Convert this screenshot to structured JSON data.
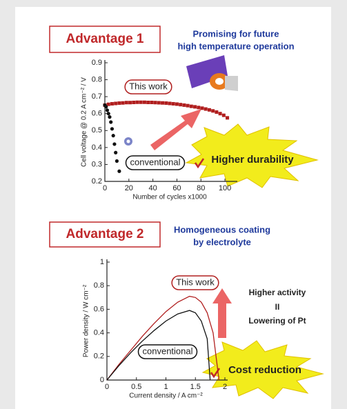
{
  "chart_data": [
    {
      "type": "scatter",
      "badge": "Advantage 1",
      "subtitle": [
        "Promising for future",
        "high temperature operation"
      ],
      "xlabel": "Number of cycles x1000",
      "ylabel": "Cell voltage @ 0.2 A cm⁻² / V",
      "xlim": [
        0,
        108
      ],
      "xticks": [
        0,
        20,
        40,
        60,
        80,
        100
      ],
      "ylim": [
        0.2,
        0.9
      ],
      "yticks": [
        0.2,
        0.3,
        0.4,
        0.5,
        0.6,
        0.7,
        0.8,
        0.9
      ],
      "series": [
        {
          "name": "This work",
          "color": "#b01e1e",
          "x": [
            0,
            3,
            6,
            9,
            12,
            15,
            18,
            21,
            24,
            27,
            30,
            33,
            36,
            39,
            42,
            45,
            48,
            51,
            54,
            57,
            60,
            63,
            66,
            69,
            72,
            75,
            78,
            81,
            84,
            87,
            90,
            93,
            96,
            99,
            102
          ],
          "values": [
            0.65,
            0.655,
            0.658,
            0.66,
            0.662,
            0.663,
            0.665,
            0.665,
            0.666,
            0.667,
            0.667,
            0.667,
            0.666,
            0.666,
            0.665,
            0.664,
            0.663,
            0.662,
            0.66,
            0.658,
            0.656,
            0.653,
            0.65,
            0.647,
            0.643,
            0.64,
            0.636,
            0.632,
            0.627,
            0.622,
            0.616,
            0.609,
            0.6,
            0.59,
            0.575
          ]
        },
        {
          "name": "conventional",
          "color": "#111111",
          "x": [
            0,
            1,
            2,
            3,
            4,
            5,
            6,
            7,
            8,
            9,
            10,
            12
          ],
          "values": [
            0.65,
            0.64,
            0.62,
            0.6,
            0.58,
            0.55,
            0.51,
            0.47,
            0.42,
            0.37,
            0.32,
            0.26
          ]
        }
      ],
      "annotations": [
        "Higher durability"
      ]
    },
    {
      "type": "line",
      "badge": "Advantage 2",
      "subtitle": [
        "Homogeneous coating",
        "by electrolyte"
      ],
      "xlabel": "Current density / A cm⁻²",
      "ylabel": "Power density / W cm⁻²",
      "xlim": [
        0,
        2
      ],
      "xticks": [
        0,
        0.5,
        1,
        1.5,
        2
      ],
      "ylim": [
        0,
        1
      ],
      "yticks": [
        0,
        0.2,
        0.4,
        0.6,
        0.8,
        1
      ],
      "series": [
        {
          "name": "This work",
          "color": "#b01e1e",
          "x": [
            0,
            0.2,
            0.4,
            0.6,
            0.8,
            1.0,
            1.2,
            1.4,
            1.5,
            1.6,
            1.7,
            1.8,
            1.9
          ],
          "values": [
            0,
            0.13,
            0.25,
            0.37,
            0.48,
            0.58,
            0.66,
            0.71,
            0.7,
            0.66,
            0.57,
            0.4,
            0
          ]
        },
        {
          "name": "conventional",
          "color": "#111111",
          "x": [
            0,
            0.2,
            0.4,
            0.6,
            0.8,
            1.0,
            1.2,
            1.4,
            1.5,
            1.6,
            1.7,
            1.75
          ],
          "values": [
            0,
            0.12,
            0.23,
            0.33,
            0.42,
            0.5,
            0.56,
            0.59,
            0.57,
            0.5,
            0.35,
            0
          ]
        }
      ],
      "annotations": [
        "Higher activity",
        "II",
        "Lowering of Pt",
        "Cost reduction"
      ]
    }
  ]
}
